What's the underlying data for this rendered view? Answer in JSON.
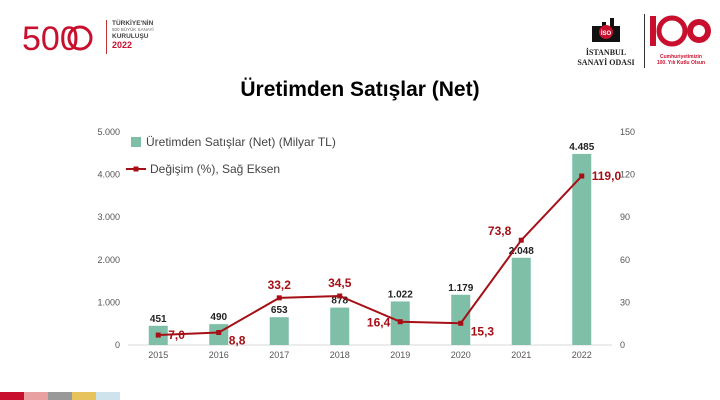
{
  "header": {
    "left_logo": {
      "numeral": "500",
      "line1": "TÜRKİYE'NİN",
      "line2": "500 BÜYÜK SANAYİ",
      "line3": "KURULUŞU",
      "year": "2022"
    },
    "right_logo": {
      "emblem_text": "İSO",
      "name_line1": "İSTANBUL",
      "name_line2": "SANAYİ ODASI",
      "centennial_text_line1": "Cumhuriyetimizin",
      "centennial_text_line2": "100. Yılı Kutlu Olsun"
    }
  },
  "chart_data": {
    "type": "bar",
    "title": "Üretimden Satışlar (Net)",
    "categories": [
      "2015",
      "2016",
      "2017",
      "2018",
      "2019",
      "2020",
      "2021",
      "2022"
    ],
    "series": [
      {
        "name": "Üretimden Satışlar (Net) (Milyar TL)",
        "type": "bar",
        "axis": "left",
        "values": [
          451,
          490,
          653,
          878,
          1022,
          1179,
          2048,
          4485
        ],
        "labels": [
          "451",
          "490",
          "653",
          "878",
          "1.022",
          "1.179",
          "2.048",
          "4.485"
        ],
        "color": "#7fbfa8"
      },
      {
        "name": "Değişim (%), Sağ Eksen",
        "type": "line",
        "axis": "right",
        "values": [
          7.0,
          8.8,
          33.2,
          34.5,
          16.4,
          15.3,
          73.8,
          119.0
        ],
        "labels": [
          "7,0",
          "8,8",
          "33,2",
          "34,5",
          "16,4",
          "15,3",
          "73,8",
          "119,0"
        ],
        "color": "#a50f15"
      }
    ],
    "y_left": {
      "ylim": [
        0,
        5000
      ],
      "ticks": [
        0,
        1000,
        2000,
        3000,
        4000,
        5000
      ],
      "tick_labels": [
        "0",
        "1.000",
        "2.000",
        "3.000",
        "4.000",
        "5.000"
      ]
    },
    "y_right": {
      "ylim": [
        0,
        150
      ],
      "ticks": [
        0,
        30,
        60,
        90,
        120,
        150
      ],
      "tick_labels": [
        "0",
        "30",
        "60",
        "90",
        "120",
        "150"
      ]
    },
    "grid": false,
    "legend_position": "top-left"
  },
  "colors": {
    "accent_red": "#c8102e",
    "bar": "#7fbfa8",
    "line": "#a50f15",
    "bottom_strip": [
      "#c8102e",
      "#e8a0a0",
      "#999999",
      "#e6c35c",
      "#cfe3ec"
    ]
  }
}
